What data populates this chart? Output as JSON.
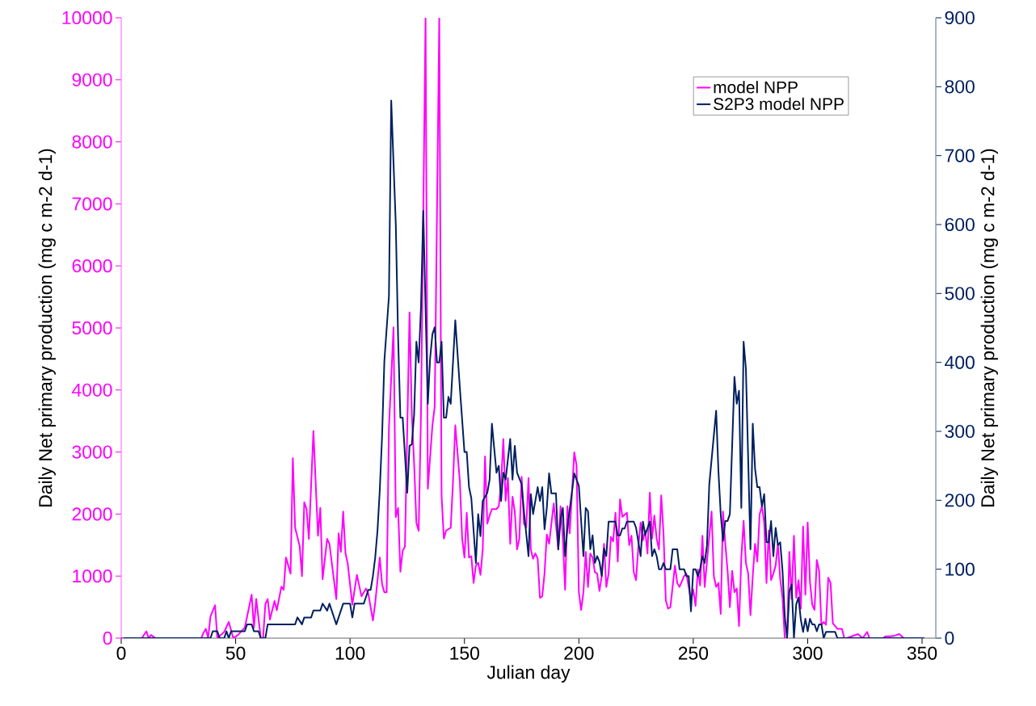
{
  "chart_data": {
    "type": "line",
    "xlabel": "Julian day",
    "ylabel": "Daily Net primary production (mg c m-2 d-1)",
    "y2label": "Daily Net primary production (mg c m-2 d-1)",
    "xlim": [
      0,
      356
    ],
    "xticks": [
      0,
      50,
      100,
      150,
      200,
      250,
      300,
      350
    ],
    "ylim": [
      0,
      10000
    ],
    "yticks": [
      0,
      1000,
      2000,
      3000,
      4000,
      5000,
      6000,
      7000,
      8000,
      9000,
      10000
    ],
    "y2lim": [
      0,
      900
    ],
    "y2ticks": [
      0,
      100,
      200,
      300,
      400,
      500,
      600,
      700,
      800,
      900
    ],
    "legend": "top right",
    "grid": false,
    "series": [
      {
        "name": "model NPP",
        "color": "#ff00ff",
        "axis": "y",
        "x": [
          0,
          9,
          11,
          12,
          13,
          15,
          35,
          36,
          37,
          38,
          39,
          41,
          42,
          45,
          47,
          49,
          51,
          54,
          57,
          58,
          59,
          61,
          62,
          63,
          64,
          65,
          67,
          68,
          70,
          71,
          72,
          74,
          75,
          76,
          78,
          79,
          80,
          81,
          82,
          84,
          86,
          87,
          88,
          90,
          91,
          94,
          95,
          96,
          97,
          98,
          99,
          101,
          103,
          105,
          107,
          108,
          110,
          111,
          113,
          114,
          115,
          116,
          117,
          119,
          120,
          121,
          122,
          123,
          124,
          126,
          127,
          128,
          129,
          130,
          131,
          133,
          134,
          136,
          137,
          139,
          140,
          141,
          142,
          144,
          145,
          146,
          148,
          149,
          150,
          151,
          152,
          153,
          154,
          155,
          156,
          157,
          158,
          159,
          160,
          161,
          162,
          164,
          165,
          166,
          167,
          168,
          169,
          170,
          171,
          172,
          173,
          174,
          175,
          176,
          177,
          178,
          179,
          180,
          181,
          182,
          183,
          184,
          185,
          186,
          187,
          189,
          190,
          191,
          192,
          193,
          194,
          195,
          196,
          198,
          199,
          200,
          201,
          202,
          203,
          204,
          205,
          206,
          207,
          208,
          209,
          210,
          211,
          212,
          213,
          214,
          215,
          216,
          217,
          218,
          219,
          221,
          222,
          223,
          224,
          225,
          226,
          227,
          228,
          229,
          230,
          231,
          232,
          233,
          234,
          235,
          236,
          237,
          238,
          239,
          240,
          242,
          243,
          244,
          246,
          247,
          249,
          250,
          251,
          252,
          253,
          254,
          255,
          256,
          258,
          259,
          260,
          261,
          262,
          263,
          264,
          265,
          266,
          267,
          268,
          269,
          270,
          271,
          272,
          273,
          274,
          275,
          276,
          277,
          278,
          279,
          280,
          281,
          282,
          283,
          284,
          285,
          286,
          287,
          288,
          289,
          290,
          291,
          292,
          293,
          294,
          295,
          296,
          297,
          298,
          299,
          300,
          301,
          302,
          303,
          304,
          305,
          306,
          307,
          308,
          309,
          310,
          311,
          313,
          315,
          316,
          317,
          322,
          324,
          326,
          327,
          333,
          334,
          336,
          338,
          340,
          342,
          349
        ],
        "values": [
          0,
          0,
          110,
          0,
          50,
          0,
          0,
          90,
          150,
          0,
          350,
          530,
          0,
          100,
          260,
          0,
          50,
          170,
          700,
          170,
          630,
          0,
          0,
          550,
          630,
          300,
          600,
          450,
          830,
          780,
          1300,
          1040,
          2900,
          1780,
          1480,
          1000,
          2190,
          2080,
          1600,
          3340,
          1650,
          2100,
          950,
          1600,
          1520,
          630,
          1690,
          1390,
          2040,
          1370,
          1200,
          540,
          1020,
          675,
          800,
          715,
          285,
          565,
          1300,
          870,
          740,
          740,
          3390,
          5010,
          1950,
          2100,
          1070,
          1410,
          1475,
          5250,
          3600,
          2820,
          1860,
          1730,
          3600,
          10000,
          2410,
          3430,
          3730,
          10000,
          2300,
          1605,
          1735,
          1780,
          2520,
          3430,
          2520,
          1605,
          1300,
          2020,
          1300,
          1320,
          890,
          1170,
          1215,
          1020,
          1430,
          2930,
          1845,
          1975,
          2080,
          2080,
          2125,
          2475,
          3210,
          2215,
          2580,
          1520,
          2280,
          2040,
          1430,
          1605,
          2600,
          1845,
          1780,
          2580,
          1430,
          1280,
          1365,
          1280,
          650,
          675,
          1040,
          1670,
          1520,
          2170,
          1825,
          1430,
          2125,
          1605,
          780,
          2125,
          1690,
          2995,
          2780,
          740,
          455,
          740,
          1390,
          825,
          1365,
          1300,
          1065,
          1040,
          760,
          1000,
          1520,
          825,
          1040,
          1630,
          1560,
          2020,
          1235,
          2235,
          1955,
          2020,
          1500,
          1650,
          1065,
          935,
          1480,
          1865,
          1580,
          1730,
          1365,
          2345,
          1605,
          1975,
          1605,
          1430,
          2300,
          1690,
          610,
          475,
          500,
          1170,
          890,
          825,
          1000,
          1040,
          610,
          780,
          520,
          1105,
          850,
          1650,
          825,
          1235,
          2040,
          1000,
          825,
          890,
          390,
          2040,
          1520,
          1085,
          500,
          1085,
          740,
          800,
          195,
          1300,
          1890,
          1215,
          1040,
          370,
          1000,
          1520,
          1235,
          1995,
          2125,
          1865,
          890,
          1735,
          935,
          1040,
          1170,
          1520,
          955,
          650,
          0,
          0,
          1390,
          630,
          1650,
          650,
          935,
          475,
          1800,
          700,
          1865,
          910,
          540,
          455,
          1260,
          1085,
          215,
          260,
          215,
          975,
          890,
          240,
          150,
          150,
          0,
          0,
          65,
          0,
          100,
          0,
          0,
          30,
          30,
          40,
          65,
          0,
          0
        ]
      },
      {
        "name": "S2P3 model NPP",
        "color": "#002060",
        "axis": "y2",
        "x": [
          1,
          39,
          40,
          42,
          43,
          45,
          46,
          47,
          48,
          54,
          55,
          57,
          58,
          60,
          61,
          63,
          64,
          76,
          77,
          79,
          80,
          83,
          84,
          87,
          88,
          90,
          91,
          94,
          96,
          97,
          100,
          101,
          102,
          106,
          107,
          108,
          109,
          110,
          111,
          112,
          113,
          114,
          115,
          117,
          118,
          120,
          121,
          122,
          123,
          125,
          126,
          127,
          128,
          129,
          130,
          131,
          132,
          134,
          135,
          136,
          137,
          138,
          139,
          140,
          141,
          142,
          143,
          144,
          146,
          148,
          150,
          151,
          152,
          153,
          155,
          156,
          157,
          158,
          160,
          161,
          162,
          164,
          165,
          166,
          167,
          168,
          170,
          171,
          172,
          173,
          175,
          176,
          178,
          179,
          180,
          182,
          183,
          184,
          185,
          186,
          187,
          188,
          190,
          191,
          192,
          193,
          194,
          195,
          198,
          200,
          202,
          203,
          204,
          205,
          206,
          207,
          208,
          209,
          210,
          211,
          212,
          213,
          216,
          217,
          218,
          219,
          220,
          221,
          224,
          225,
          227,
          228,
          229,
          231,
          232,
          233,
          234,
          235,
          236,
          237,
          238,
          240,
          241,
          243,
          244,
          246,
          247,
          248,
          249,
          250,
          251,
          252,
          253,
          254,
          255,
          256,
          257,
          260,
          261,
          262,
          263,
          264,
          265,
          266,
          268,
          269,
          270,
          271,
          272,
          273,
          275,
          276,
          277,
          278,
          279,
          280,
          281,
          282,
          283,
          284,
          285,
          286,
          287,
          288,
          289,
          290,
          291,
          292,
          293,
          294,
          295,
          296,
          297,
          298,
          299,
          300,
          301,
          302,
          303,
          304,
          305,
          306,
          307,
          308,
          312,
          313,
          351
        ],
        "values": [
          0,
          0,
          10,
          10,
          0,
          0,
          10,
          0,
          10,
          10,
          20,
          20,
          10,
          10,
          0,
          0,
          20,
          20,
          30,
          20,
          30,
          30,
          40,
          40,
          50,
          40,
          50,
          20,
          40,
          50,
          50,
          30,
          50,
          50,
          60,
          70,
          70,
          90,
          117,
          156,
          215,
          293,
          402,
          496,
          780,
          600,
          437,
          320,
          320,
          211,
          279,
          281,
          324,
          430,
          400,
          480,
          620,
          340,
          406,
          441,
          451,
          400,
          400,
          430,
          320,
          320,
          350,
          340,
          461,
          363,
          270,
          270,
          219,
          203,
          109,
          180,
          148,
          199,
          211,
          230,
          311,
          240,
          250,
          199,
          240,
          230,
          289,
          230,
          279,
          240,
          223,
          184,
          119,
          209,
          180,
          219,
          199,
          219,
          158,
          189,
          239,
          210,
          210,
          129,
          172,
          189,
          119,
          160,
          239,
          221,
          119,
          189,
          184,
          129,
          149,
          109,
          119,
          111,
          90,
          130,
          119,
          169,
          169,
          149,
          149,
          159,
          159,
          169,
          169,
          160,
          119,
          169,
          150,
          169,
          119,
          129,
          119,
          100,
          100,
          109,
          100,
          100,
          129,
          129,
          100,
          100,
          90,
          90,
          39,
          100,
          100,
          90,
          100,
          119,
          109,
          135,
          223,
          330,
          242,
          180,
          141,
          170,
          170,
          180,
          379,
          340,
          359,
          189,
          430,
          391,
          129,
          311,
          246,
          219,
          219,
          191,
          209,
          139,
          139,
          170,
          119,
          160,
          135,
          139,
          98,
          31,
          0,
          68,
          78,
          0,
          49,
          59,
          27,
          9,
          28,
          10,
          28,
          20,
          20,
          10,
          20,
          20,
          0,
          9,
          9,
          0,
          0
        ]
      }
    ]
  }
}
